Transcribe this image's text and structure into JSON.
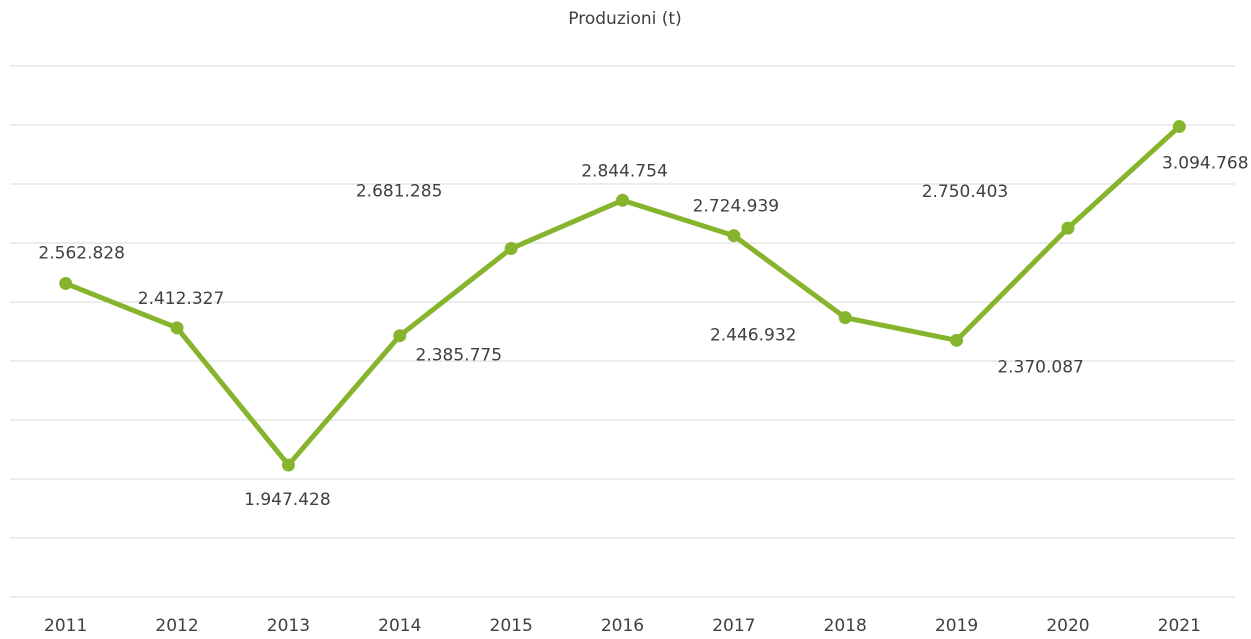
{
  "chart_data": {
    "type": "line",
    "title": "Produzioni (t)",
    "categories": [
      "2011",
      "2012",
      "2013",
      "2014",
      "2015",
      "2016",
      "2017",
      "2018",
      "2019",
      "2020",
      "2021"
    ],
    "series": [
      {
        "name": "Produzioni (t)",
        "color": "#86b52d",
        "values": [
          2562828,
          2412327,
          1947428,
          2385775,
          2681285,
          2844754,
          2724939,
          2446932,
          2370087,
          2750403,
          3094768
        ],
        "value_labels": [
          "2.562.828",
          "2.412.327",
          "1.947.428",
          "2.385.775",
          "2.681.285",
          "2.844.754",
          "2.724.939",
          "2.446.932",
          "2.370.087",
          "2.750.403",
          "3.094.768"
        ]
      }
    ],
    "ylim": [
      1500000,
      3300000
    ],
    "yticks": [
      1500000,
      1700000,
      1900000,
      2100000,
      2300000,
      2500000,
      2700000,
      2900000,
      3100000,
      3300000
    ],
    "grid": true
  }
}
